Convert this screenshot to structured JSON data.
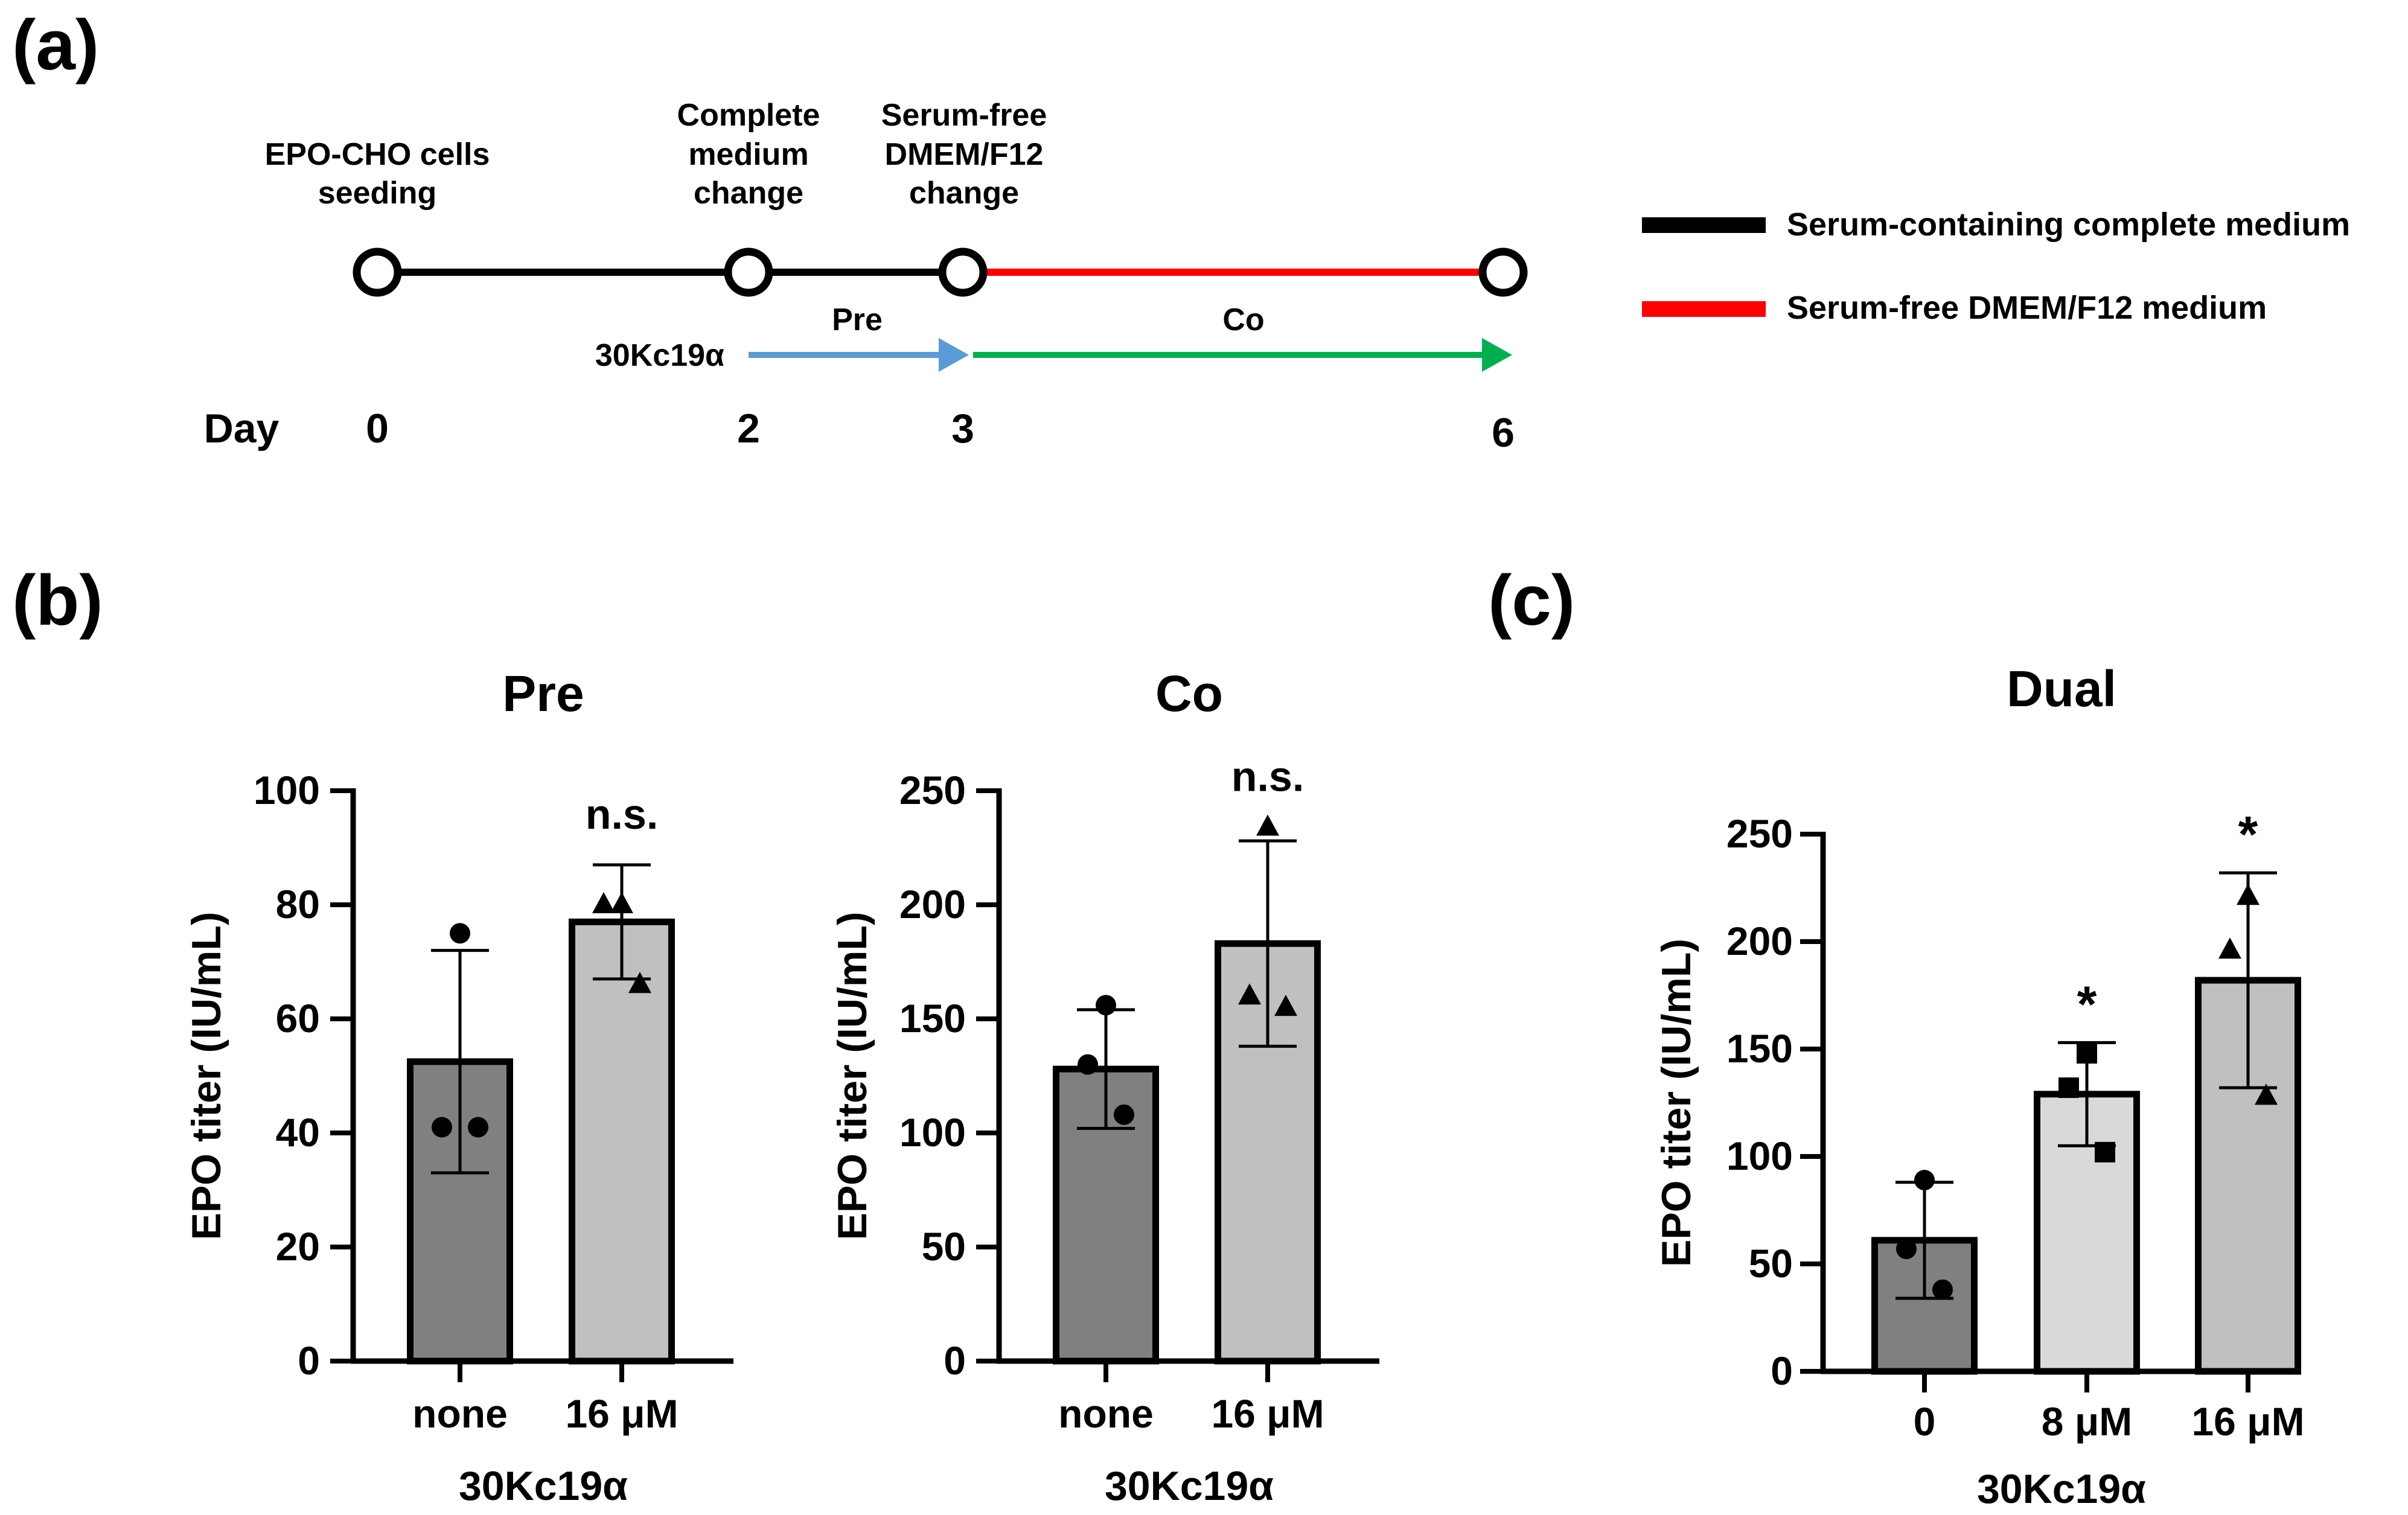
{
  "panel_labels": {
    "a": "(a)",
    "b": "(b)",
    "c": "(c)"
  },
  "timeline": {
    "events": [
      {
        "day": "0",
        "lines": [
          "EPO-CHO cells",
          "seeding"
        ]
      },
      {
        "day": "2",
        "lines": [
          "Complete",
          "medium",
          "change"
        ]
      },
      {
        "day": "3",
        "lines": [
          "Serum-free",
          "DMEM/F12",
          "change"
        ]
      },
      {
        "day": "6",
        "lines": []
      }
    ],
    "day_label": "Day",
    "treatment_label": "30Kc19α",
    "pre_label": "Pre",
    "co_label": "Co",
    "legend": [
      {
        "label": "Serum-containing complete medium",
        "color": "#000000"
      },
      {
        "label": "Serum-free DMEM/F12 medium",
        "color": "#ff0000"
      }
    ],
    "colors": {
      "serum_line": "#000000",
      "serumfree_line": "#ff0000",
      "pre_arrow": "#5b9bd5",
      "co_arrow": "#00b050"
    }
  },
  "chart_data": [
    {
      "type": "bar",
      "title": "Pre",
      "ylabel": "EPO titer (IU/mL)",
      "xlabel": "30Kc19α",
      "categories": [
        "none",
        "16 μM"
      ],
      "values": [
        52.5,
        77
      ],
      "error": [
        19.5,
        10
      ],
      "points": [
        [
          75,
          41,
          41
        ],
        [
          80,
          80,
          66
        ]
      ],
      "markers": [
        "circle",
        "triangle"
      ],
      "bar_colors": [
        "#808080",
        "#c0c0c0"
      ],
      "annotations": [
        "",
        "n.s."
      ],
      "ylim": [
        0,
        100
      ],
      "yticks": [
        0,
        20,
        40,
        60,
        80,
        100
      ]
    },
    {
      "type": "bar",
      "title": "Co",
      "ylabel": "EPO titer (IU/mL)",
      "xlabel": "30Kc19α",
      "categories": [
        "none",
        "16 μM"
      ],
      "values": [
        128,
        183
      ],
      "error": [
        26,
        45
      ],
      "points": [
        [
          156,
          130,
          108
        ],
        [
          234,
          160,
          155
        ]
      ],
      "markers": [
        "circle",
        "triangle"
      ],
      "bar_colors": [
        "#808080",
        "#c0c0c0"
      ],
      "annotations": [
        "",
        "n.s."
      ],
      "ylim": [
        0,
        250
      ],
      "yticks": [
        0,
        50,
        100,
        150,
        200,
        250
      ]
    },
    {
      "type": "bar",
      "title": "Dual",
      "ylabel": "EPO titer (IU/mL)",
      "xlabel": "30Kc19α",
      "categories": [
        "0",
        "8 μM",
        "16 μM"
      ],
      "values": [
        61,
        129,
        182
      ],
      "error": [
        27,
        24,
        50
      ],
      "points": [
        [
          89,
          57,
          38
        ],
        [
          148,
          132,
          102
        ],
        [
          221,
          196,
          128
        ]
      ],
      "markers": [
        "circle",
        "square",
        "triangle"
      ],
      "bar_colors": [
        "#808080",
        "#d9d9d9",
        "#c0c0c0"
      ],
      "annotations": [
        "",
        "*",
        "*"
      ],
      "ylim": [
        0,
        250
      ],
      "yticks": [
        0,
        50,
        100,
        150,
        200,
        250
      ]
    }
  ]
}
